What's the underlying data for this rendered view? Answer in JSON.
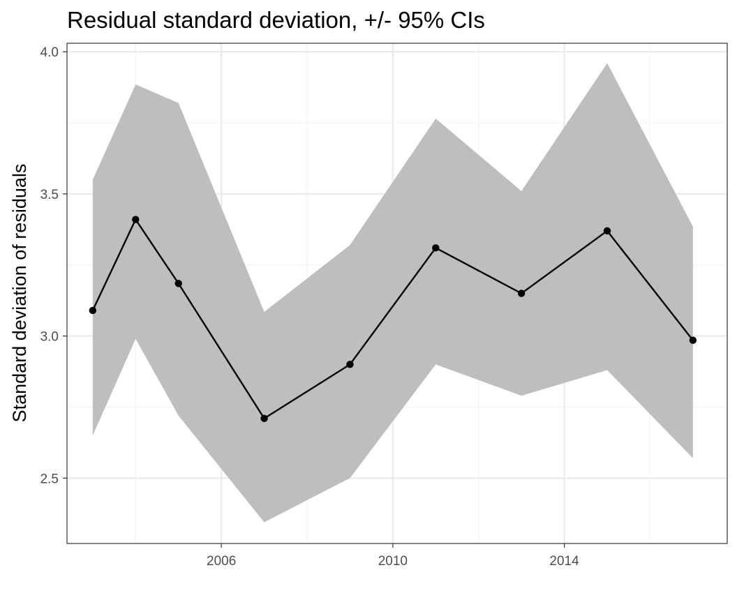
{
  "chart_data": {
    "type": "line",
    "title": "Residual standard deviation, +/- 95% CIs",
    "xlabel": "",
    "ylabel": "Standard deviation of residuals",
    "xlim": [
      2002.4,
      2017.8
    ],
    "ylim": [
      2.27,
      4.03
    ],
    "x_ticks": [
      2006,
      2010,
      2014
    ],
    "x_tick_labels": [
      "2006",
      "2010",
      "2014"
    ],
    "x_minor_ticks": [
      2004,
      2008,
      2012,
      2016
    ],
    "y_ticks": [
      2.5,
      3.0,
      3.5,
      4.0
    ],
    "y_tick_labels": [
      "2.5",
      "3.0",
      "3.5",
      "4.0"
    ],
    "y_minor_ticks": [
      2.75,
      3.25,
      3.75
    ],
    "grid": true,
    "series": [
      {
        "x": [
          2003,
          2004,
          2005,
          2007,
          2009,
          2011,
          2013,
          2015,
          2017
        ],
        "y": [
          3.09,
          3.41,
          3.185,
          2.71,
          2.9,
          3.31,
          3.15,
          3.37,
          2.985
        ],
        "lower": [
          2.65,
          2.99,
          2.72,
          2.345,
          2.5,
          2.9,
          2.79,
          2.88,
          2.57
        ],
        "upper": [
          3.55,
          3.885,
          3.82,
          3.085,
          3.32,
          3.765,
          3.51,
          3.96,
          3.385
        ]
      }
    ],
    "colors": {
      "ribbon": "#bebebe",
      "line": "#000000",
      "grid_major": "#ebebeb",
      "grid_minor": "#f3f3f3",
      "panel_border": "#333333",
      "tick_text": "#4d4d4d"
    }
  }
}
